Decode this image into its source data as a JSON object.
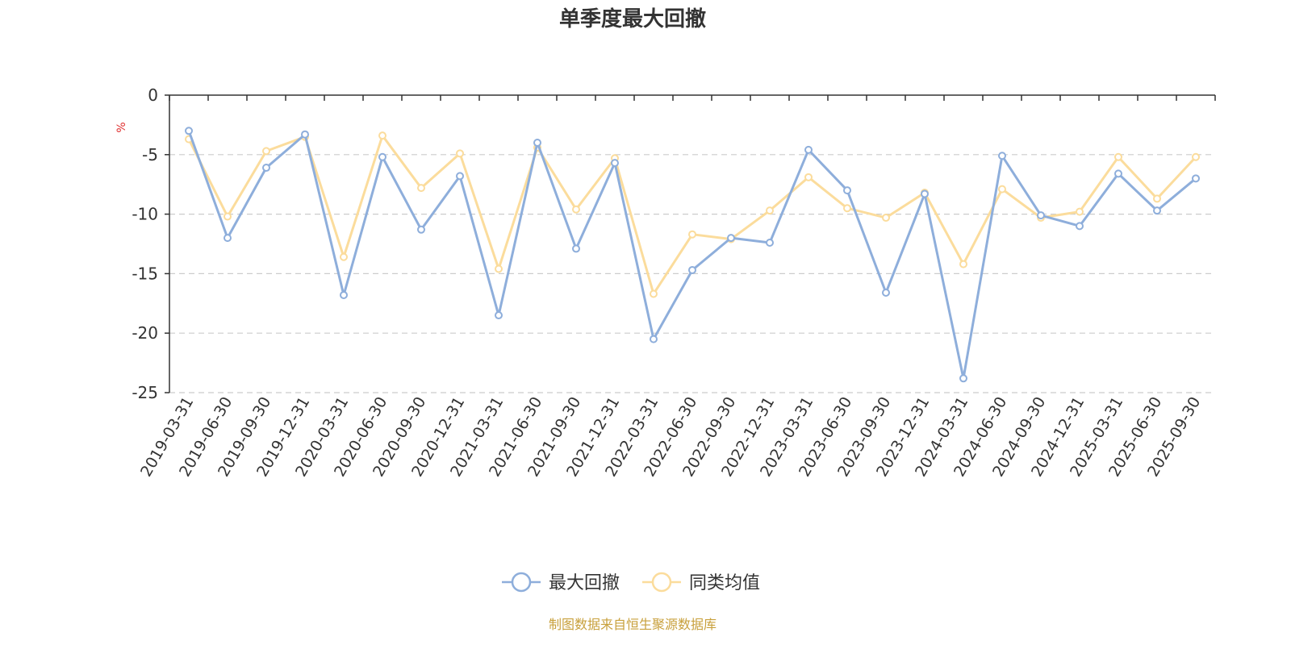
{
  "chart_data": {
    "type": "line",
    "title": "单季度最大回撤",
    "ylabel": "%",
    "ylim": [
      -25,
      0
    ],
    "yticks": [
      0,
      -5,
      -10,
      -15,
      -20,
      -25
    ],
    "categories": [
      "2019-03-31",
      "2019-06-30",
      "2019-09-30",
      "2019-12-31",
      "2020-03-31",
      "2020-06-30",
      "2020-09-30",
      "2020-12-31",
      "2021-03-31",
      "2021-06-30",
      "2021-09-30",
      "2021-12-31",
      "2022-03-31",
      "2022-06-30",
      "2022-09-30",
      "2022-12-31",
      "2023-03-31",
      "2023-06-30",
      "2023-09-30",
      "2023-12-31",
      "2024-03-31",
      "2024-06-30",
      "2024-09-30",
      "2024-12-31",
      "2025-03-31",
      "2025-06-30",
      "2025-09-30"
    ],
    "series": [
      {
        "name": "最大回撤",
        "color": "#8eaedb",
        "values": [
          -3.0,
          -12.0,
          -6.1,
          -3.3,
          -16.8,
          -5.2,
          -11.3,
          -6.8,
          -18.5,
          -4.0,
          -12.9,
          -5.7,
          -20.5,
          -14.7,
          -12.0,
          -12.4,
          -4.6,
          -8.0,
          -16.6,
          -8.3,
          -23.8,
          -5.1,
          -10.1,
          -11.0,
          -6.6,
          -9.7,
          -7.0
        ]
      },
      {
        "name": "同类均值",
        "color": "#fbdc9c",
        "values": [
          -3.7,
          -10.2,
          -4.7,
          -3.5,
          -13.6,
          -3.4,
          -7.8,
          -4.9,
          -14.6,
          -4.4,
          -9.6,
          -5.3,
          -16.7,
          -11.7,
          -12.1,
          -9.7,
          -6.9,
          -9.5,
          -10.3,
          -8.2,
          -14.2,
          -7.9,
          -10.3,
          -9.8,
          -5.2,
          -8.7,
          -5.2
        ]
      }
    ]
  },
  "legend": [
    {
      "label": "最大回撤"
    },
    {
      "label": "同类均值"
    }
  ],
  "source_text": "制图数据来自恒生聚源数据库",
  "colors": {
    "axis": "#333333",
    "grid": "#cccccc",
    "unit": "#e03030",
    "source": "#c8a03c"
  }
}
